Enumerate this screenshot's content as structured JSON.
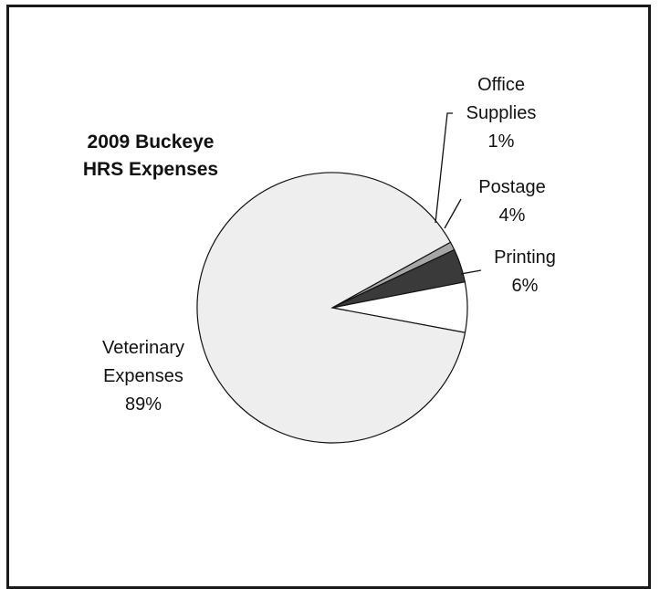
{
  "chart_data": {
    "type": "pie",
    "title_lines": [
      "2009 Buckeye",
      "HRS Expenses"
    ],
    "slices": [
      {
        "name": "Office Supplies",
        "label_lines": [
          "Office",
          "Supplies"
        ],
        "value": 1,
        "value_label": "1%",
        "color": "#a6a6a6"
      },
      {
        "name": "Postage",
        "label_lines": [
          "Postage"
        ],
        "value": 4,
        "value_label": "4%",
        "color": "#3a3a3a"
      },
      {
        "name": "Printing",
        "label_lines": [
          "Printing"
        ],
        "value": 6,
        "value_label": "6%",
        "color": "#ffffff"
      },
      {
        "name": "Veterinary Expenses",
        "label_lines": [
          "Veterinary",
          "Expenses"
        ],
        "value": 89,
        "value_label": "89%",
        "color": "#eeeeee"
      }
    ],
    "legend": "none"
  }
}
